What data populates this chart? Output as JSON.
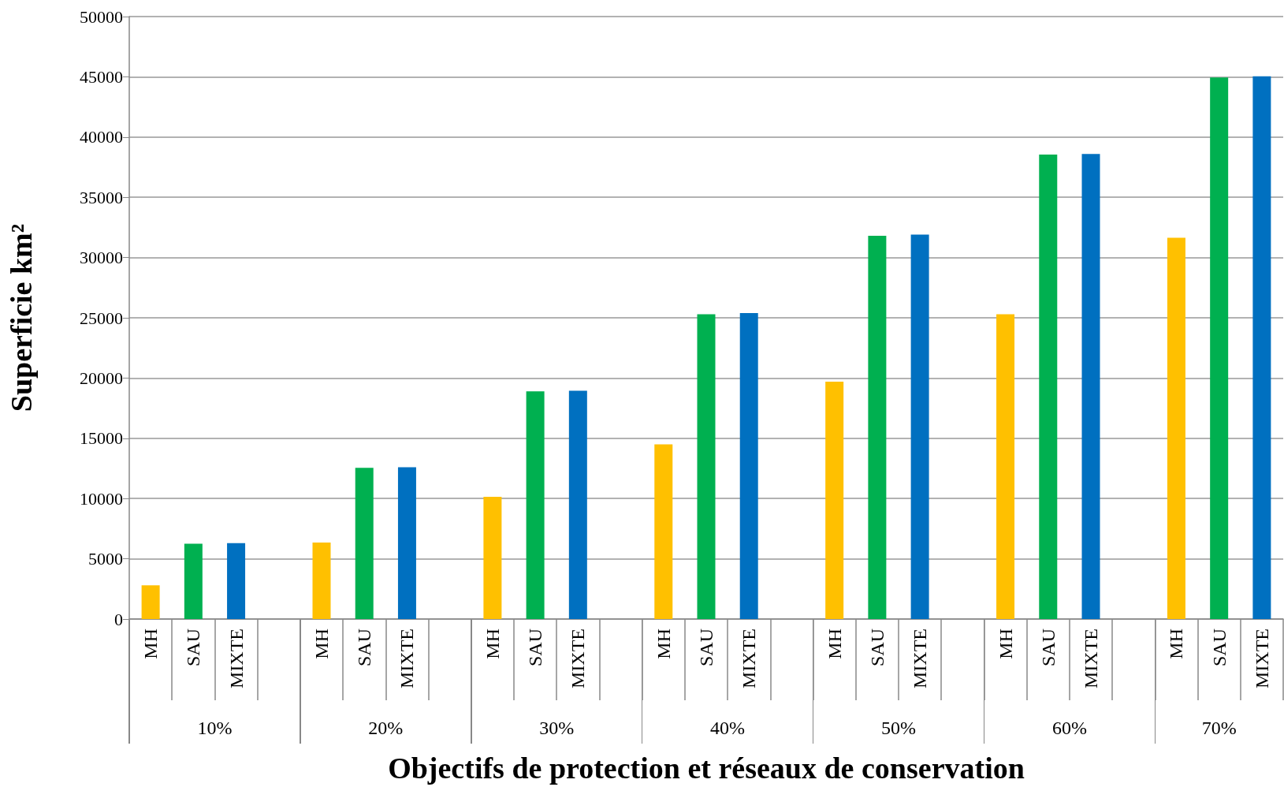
{
  "chart_data": {
    "type": "bar",
    "xlabel": "Objectifs de protection et réseaux de conservation",
    "ylabel": "Superficie km²",
    "categories": [
      "MH",
      "SAU",
      "MIXTE",
      null,
      "MH",
      "SAU",
      "MIXTE",
      null,
      "MH",
      "SAU",
      "MIXTE",
      null,
      "MH",
      "SAU",
      "MIXTE",
      null,
      "MH",
      "SAU",
      "MIXTE",
      null,
      "MH",
      "SAU",
      "MIXTE",
      null,
      "MH",
      "SAU",
      "MIXTE"
    ],
    "values": [
      2800,
      6250,
      6300,
      null,
      6350,
      12550,
      12600,
      null,
      10150,
      18900,
      18950,
      null,
      14500,
      25300,
      25400,
      null,
      19700,
      31800,
      31900,
      null,
      25300,
      38550,
      38600,
      null,
      31650,
      44950,
      45050
    ],
    "colors": [
      "#ffc000",
      "#00b050",
      "#0070c0",
      null,
      "#ffc000",
      "#00b050",
      "#0070c0",
      null,
      "#ffc000",
      "#00b050",
      "#0070c0",
      null,
      "#ffc000",
      "#00b050",
      "#0070c0",
      null,
      "#ffc000",
      "#00b050",
      "#0070c0",
      null,
      "#ffc000",
      "#00b050",
      "#0070c0",
      null,
      "#ffc000",
      "#00b050",
      "#0070c0"
    ],
    "ylim": [
      0,
      50000
    ],
    "yticks": [
      0,
      5000,
      10000,
      15000,
      20000,
      25000,
      30000,
      35000,
      40000,
      45000,
      50000
    ],
    "grid": "y",
    "annotations": [
      "10%",
      "20%",
      "30%",
      "40%",
      "50%",
      "60%",
      "70%"
    ]
  }
}
